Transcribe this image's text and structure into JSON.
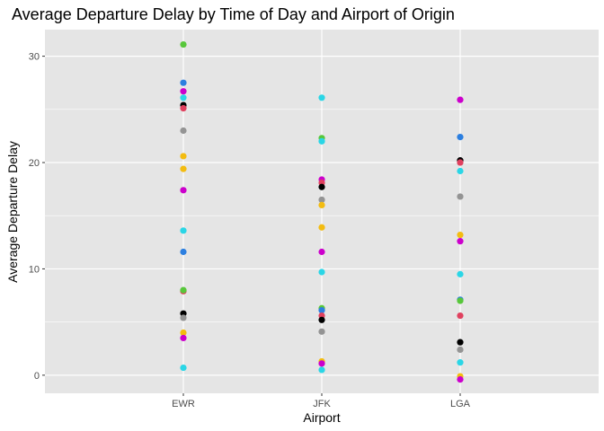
{
  "chart_data": {
    "type": "scatter",
    "title": "Average Departure Delay by Time of Day and Airport of Origin",
    "xlabel": "Airport",
    "ylabel": "Average Departure Delay",
    "categories": [
      "EWR",
      "JFK",
      "LGA"
    ],
    "ylim": [
      -1.7,
      32.5
    ],
    "yticks": [
      0,
      10,
      20,
      30
    ],
    "grid": true,
    "legend": "none",
    "point_color_hexes": [
      "#000000",
      "#e0415f",
      "#58c73b",
      "#2c7fe0",
      "#2ad6e6",
      "#cc00cc",
      "#f3bc11",
      "#949494"
    ],
    "points": [
      {
        "x": "EWR",
        "y": 31.1,
        "color": "#58c73b"
      },
      {
        "x": "EWR",
        "y": 27.5,
        "color": "#2c7fe0"
      },
      {
        "x": "EWR",
        "y": 26.7,
        "color": "#cc00cc"
      },
      {
        "x": "EWR",
        "y": 26.1,
        "color": "#2ad6e6"
      },
      {
        "x": "EWR",
        "y": 25.4,
        "color": "#000000"
      },
      {
        "x": "EWR",
        "y": 25.1,
        "color": "#e0415f"
      },
      {
        "x": "EWR",
        "y": 23.0,
        "color": "#949494"
      },
      {
        "x": "EWR",
        "y": 20.6,
        "color": "#f3bc11"
      },
      {
        "x": "EWR",
        "y": 19.4,
        "color": "#f3bc11"
      },
      {
        "x": "EWR",
        "y": 17.4,
        "color": "#cc00cc"
      },
      {
        "x": "EWR",
        "y": 13.6,
        "color": "#2ad6e6"
      },
      {
        "x": "EWR",
        "y": 11.6,
        "color": "#2c7fe0"
      },
      {
        "x": "EWR",
        "y": 7.9,
        "color": "#e0415f"
      },
      {
        "x": "EWR",
        "y": 8.0,
        "color": "#58c73b"
      },
      {
        "x": "EWR",
        "y": 5.8,
        "color": "#000000"
      },
      {
        "x": "EWR",
        "y": 5.4,
        "color": "#949494"
      },
      {
        "x": "EWR",
        "y": 4.0,
        "color": "#f3bc11"
      },
      {
        "x": "EWR",
        "y": 3.5,
        "color": "#cc00cc"
      },
      {
        "x": "EWR",
        "y": 0.7,
        "color": "#2ad6e6"
      },
      {
        "x": "JFK",
        "y": 26.1,
        "color": "#2ad6e6"
      },
      {
        "x": "JFK",
        "y": 22.3,
        "color": "#58c73b"
      },
      {
        "x": "JFK",
        "y": 22.0,
        "color": "#2ad6e6"
      },
      {
        "x": "JFK",
        "y": 18.4,
        "color": "#cc00cc"
      },
      {
        "x": "JFK",
        "y": 18.1,
        "color": "#e0415f"
      },
      {
        "x": "JFK",
        "y": 17.7,
        "color": "#000000"
      },
      {
        "x": "JFK",
        "y": 16.5,
        "color": "#949494"
      },
      {
        "x": "JFK",
        "y": 16.0,
        "color": "#f3bc11"
      },
      {
        "x": "JFK",
        "y": 13.9,
        "color": "#f3bc11"
      },
      {
        "x": "JFK",
        "y": 11.6,
        "color": "#cc00cc"
      },
      {
        "x": "JFK",
        "y": 9.7,
        "color": "#2ad6e6"
      },
      {
        "x": "JFK",
        "y": 6.3,
        "color": "#58c73b"
      },
      {
        "x": "JFK",
        "y": 6.1,
        "color": "#2c7fe0"
      },
      {
        "x": "JFK",
        "y": 5.6,
        "color": "#e0415f"
      },
      {
        "x": "JFK",
        "y": 5.2,
        "color": "#000000"
      },
      {
        "x": "JFK",
        "y": 4.1,
        "color": "#949494"
      },
      {
        "x": "JFK",
        "y": 1.3,
        "color": "#f3bc11"
      },
      {
        "x": "JFK",
        "y": 1.1,
        "color": "#cc00cc"
      },
      {
        "x": "JFK",
        "y": 0.5,
        "color": "#2ad6e6"
      },
      {
        "x": "LGA",
        "y": 25.9,
        "color": "#cc00cc"
      },
      {
        "x": "LGA",
        "y": 22.4,
        "color": "#2c7fe0"
      },
      {
        "x": "LGA",
        "y": 20.2,
        "color": "#000000"
      },
      {
        "x": "LGA",
        "y": 20.0,
        "color": "#e0415f"
      },
      {
        "x": "LGA",
        "y": 19.2,
        "color": "#2ad6e6"
      },
      {
        "x": "LGA",
        "y": 16.8,
        "color": "#949494"
      },
      {
        "x": "LGA",
        "y": 13.2,
        "color": "#f3bc11"
      },
      {
        "x": "LGA",
        "y": 12.6,
        "color": "#cc00cc"
      },
      {
        "x": "LGA",
        "y": 9.5,
        "color": "#2ad6e6"
      },
      {
        "x": "LGA",
        "y": 7.1,
        "color": "#2c7fe0"
      },
      {
        "x": "LGA",
        "y": 7.0,
        "color": "#58c73b"
      },
      {
        "x": "LGA",
        "y": 5.6,
        "color": "#e0415f"
      },
      {
        "x": "LGA",
        "y": 3.1,
        "color": "#000000"
      },
      {
        "x": "LGA",
        "y": 2.4,
        "color": "#949494"
      },
      {
        "x": "LGA",
        "y": 1.2,
        "color": "#2ad6e6"
      },
      {
        "x": "LGA",
        "y": -0.1,
        "color": "#f3bc11"
      },
      {
        "x": "LGA",
        "y": -0.4,
        "color": "#cc00cc"
      }
    ]
  },
  "style": {
    "panel_background": "#e5e5e5",
    "grid_color": "#ffffff",
    "tick_color": "#333333"
  }
}
